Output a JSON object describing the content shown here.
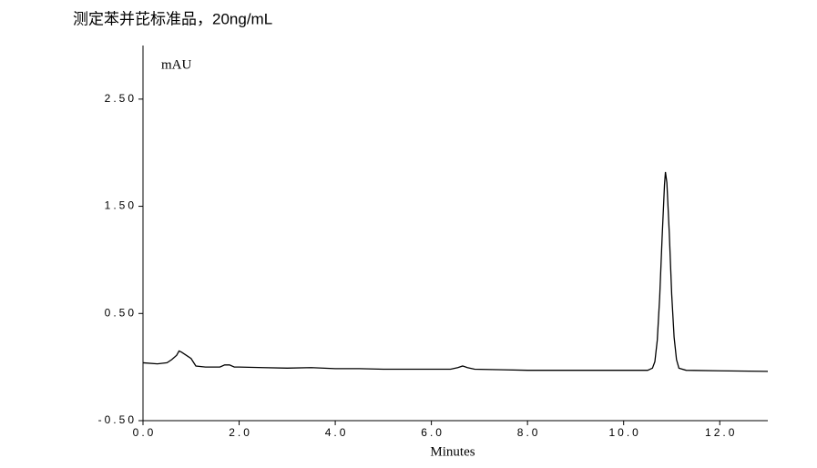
{
  "chart_data": {
    "type": "line",
    "title": "测定苯并芘标准品，20ng/mL",
    "y_label": "mAU",
    "x_label": "Minutes",
    "xlim": [
      0,
      13
    ],
    "ylim": [
      -0.5,
      3.0
    ],
    "xticks": [
      {
        "value": 0,
        "label": "0.0"
      },
      {
        "value": 2,
        "label": "2.0"
      },
      {
        "value": 4,
        "label": "4.0"
      },
      {
        "value": 6,
        "label": "6.0"
      },
      {
        "value": 8,
        "label": "8.0"
      },
      {
        "value": 10,
        "label": "10.0"
      },
      {
        "value": 12,
        "label": "12.0"
      }
    ],
    "yticks": [
      {
        "value": -0.5,
        "label": "-0.50"
      },
      {
        "value": 0.5,
        "label": "0.50"
      },
      {
        "value": 1.5,
        "label": "1.50"
      },
      {
        "value": 2.5,
        "label": "2.50"
      }
    ],
    "grid": false,
    "series": [
      {
        "color": "#000000",
        "x": [
          0,
          0.3,
          0.5,
          0.6,
          0.7,
          0.75,
          0.8,
          0.9,
          1.0,
          1.1,
          1.3,
          1.6,
          1.7,
          1.8,
          1.9,
          2.0,
          2.5,
          3.0,
          3.5,
          4.0,
          4.5,
          5.0,
          5.5,
          6.0,
          6.4,
          6.55,
          6.65,
          6.75,
          6.9,
          7.5,
          8.0,
          9.0,
          10.0,
          10.5,
          10.6,
          10.65,
          10.7,
          10.75,
          10.8,
          10.85,
          10.87,
          10.9,
          10.95,
          11.0,
          11.05,
          11.1,
          11.15,
          11.3,
          12.0,
          13.0
        ],
        "values": [
          0.04,
          0.03,
          0.04,
          0.07,
          0.11,
          0.15,
          0.14,
          0.11,
          0.08,
          0.01,
          0.0,
          0.0,
          0.02,
          0.02,
          0.0,
          0.0,
          -0.005,
          -0.01,
          -0.005,
          -0.015,
          -0.015,
          -0.02,
          -0.02,
          -0.02,
          -0.02,
          -0.005,
          0.01,
          -0.005,
          -0.02,
          -0.025,
          -0.03,
          -0.03,
          -0.03,
          -0.03,
          -0.01,
          0.05,
          0.25,
          0.65,
          1.2,
          1.7,
          1.82,
          1.72,
          1.25,
          0.68,
          0.28,
          0.07,
          -0.01,
          -0.03,
          -0.035,
          -0.04
        ]
      }
    ]
  }
}
